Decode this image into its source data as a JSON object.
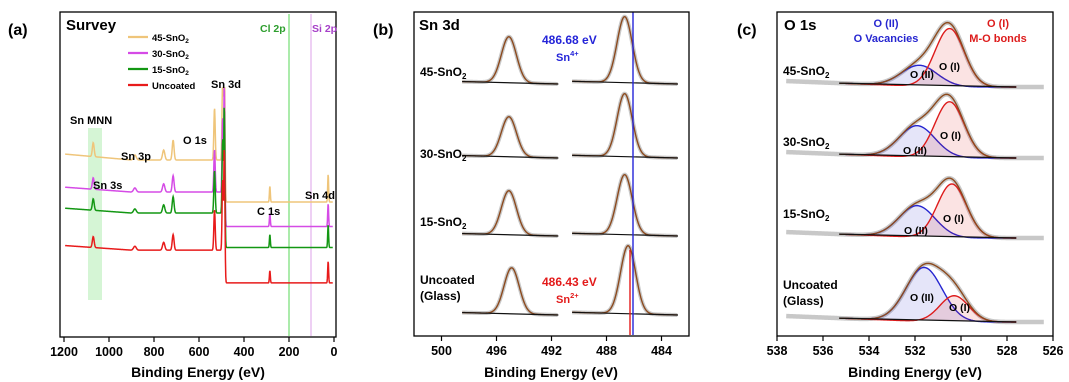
{
  "colors": {
    "s45": "#EFC57A",
    "s30": "#D54BE6",
    "s15": "#139713",
    "uncoated": "#E81B1B",
    "fit": "#8C4A1E",
    "envelope": "#C8C8C8",
    "baseline": "#111111",
    "sn4_line": "#2424D8",
    "sn2_line": "#E31A1A",
    "oii": "#2626D0",
    "oi": "#DD1C1C",
    "mnn_band": "#C7F2C7",
    "cl_band": "#7EE07E",
    "si_band": "#E4B7EE"
  },
  "panel_a": {
    "panel_letter": "(a)",
    "title": "Survey",
    "xlabel": "Binding Energy (eV)",
    "xlim": [
      1200,
      0
    ],
    "xticks": [
      "1200",
      "1000",
      "800",
      "600",
      "400",
      "200",
      "0"
    ],
    "legend": [
      "45-SnO",
      "30-SnO",
      "15-SnO",
      "Uncoated"
    ],
    "legend_sub": "2",
    "cl2p_label": "Cl 2p",
    "si2p_label": "Si 2p",
    "peak_labels": {
      "sn_mnn": "Sn MNN",
      "sn3p": "Sn 3p",
      "sn3s": "Sn 3s",
      "o1s": "O 1s",
      "sn3d": "Sn 3d",
      "c1s": "C 1s",
      "sn4d": "Sn 4d"
    }
  },
  "panel_b": {
    "panel_letter": "(b)",
    "title": "Sn 3d",
    "xlabel": "Binding Energy (eV)",
    "xlim": [
      502,
      482
    ],
    "xticks": [
      "500",
      "496",
      "492",
      "488",
      "484"
    ],
    "samples": [
      "45-SnO",
      "30-SnO",
      "15-SnO",
      "Uncoated"
    ],
    "sample_sub": "2",
    "glass_label": "(Glass)",
    "sn4_energy": "486.68 eV",
    "sn4_label": "Sn",
    "sn4_sup": "4+",
    "sn2_energy": "486.43 eV",
    "sn2_label": "Sn",
    "sn2_sup": "2+"
  },
  "panel_c": {
    "panel_letter": "(c)",
    "title": "O 1s",
    "xlabel": "Binding Energy (eV)",
    "xlim": [
      538,
      526
    ],
    "xticks": [
      "538",
      "536",
      "534",
      "532",
      "530",
      "528",
      "526"
    ],
    "samples": [
      "45-SnO",
      "30-SnO",
      "15-SnO",
      "Uncoated"
    ],
    "sample_sub": "2",
    "glass_label": "(Glass)",
    "oii_title": "O (II)",
    "oii_desc": "O Vacancies",
    "oi_title": "O (I)",
    "oi_desc": "M-O bonds",
    "oii_tag": "O (II)",
    "oi_tag": "O (I)"
  },
  "chart_data": [
    {
      "type": "line",
      "panel": "(a)",
      "title": "Survey",
      "xlabel": "Binding Energy (eV)",
      "xlim": [
        1200,
        0
      ],
      "series": [
        {
          "name": "45-SnO2",
          "peaks_eV": [
            1070,
            885,
            757,
            715,
            531,
            495,
            487,
            285,
            26
          ]
        },
        {
          "name": "30-SnO2",
          "peaks_eV": [
            1070,
            885,
            757,
            715,
            531,
            495,
            487,
            285,
            26
          ]
        },
        {
          "name": "15-SnO2",
          "peaks_eV": [
            1070,
            885,
            757,
            715,
            531,
            495,
            487,
            285,
            26
          ]
        },
        {
          "name": "Uncoated",
          "peaks_eV": [
            1070,
            885,
            757,
            715,
            531,
            495,
            487,
            285,
            26
          ]
        }
      ],
      "regions_eV": {
        "Sn MNN": [
          1090,
          1045
        ],
        "Cl 2p": 200,
        "Si 2p": 100
      }
    },
    {
      "type": "line",
      "panel": "(b)",
      "title": "Sn 3d",
      "xlabel": "Binding Energy (eV)",
      "xlim": [
        502,
        482
      ],
      "series": [
        {
          "name": "45-SnO2",
          "peaks_eV": [
            495.1,
            486.68
          ]
        },
        {
          "name": "30-SnO2",
          "peaks_eV": [
            495.1,
            486.68
          ]
        },
        {
          "name": "15-SnO2",
          "peaks_eV": [
            495.1,
            486.68
          ]
        },
        {
          "name": "Uncoated (Glass)",
          "peaks_eV": [
            494.9,
            486.43
          ]
        }
      ],
      "reference_lines_eV": {
        "Sn4+": 486.68,
        "Sn2+": 486.43
      }
    },
    {
      "type": "line",
      "panel": "(c)",
      "title": "O 1s",
      "xlabel": "Binding Energy (eV)",
      "xlim": [
        538,
        526
      ],
      "series": [
        {
          "name": "45-SnO2",
          "O_II_eV": 531.8,
          "O_I_eV": 530.5,
          "O_II_height": 0.28,
          "O_I_height": 0.78
        },
        {
          "name": "30-SnO2",
          "O_II_eV": 531.9,
          "O_I_eV": 530.5,
          "O_II_height": 0.42,
          "O_I_height": 0.75
        },
        {
          "name": "15-SnO2",
          "O_II_eV": 531.9,
          "O_I_eV": 530.4,
          "O_II_height": 0.42,
          "O_I_height": 0.72
        },
        {
          "name": "Uncoated (Glass)",
          "O_II_eV": 531.6,
          "O_I_eV": 530.3,
          "O_II_height": 0.72,
          "O_I_height": 0.35
        }
      ]
    }
  ]
}
